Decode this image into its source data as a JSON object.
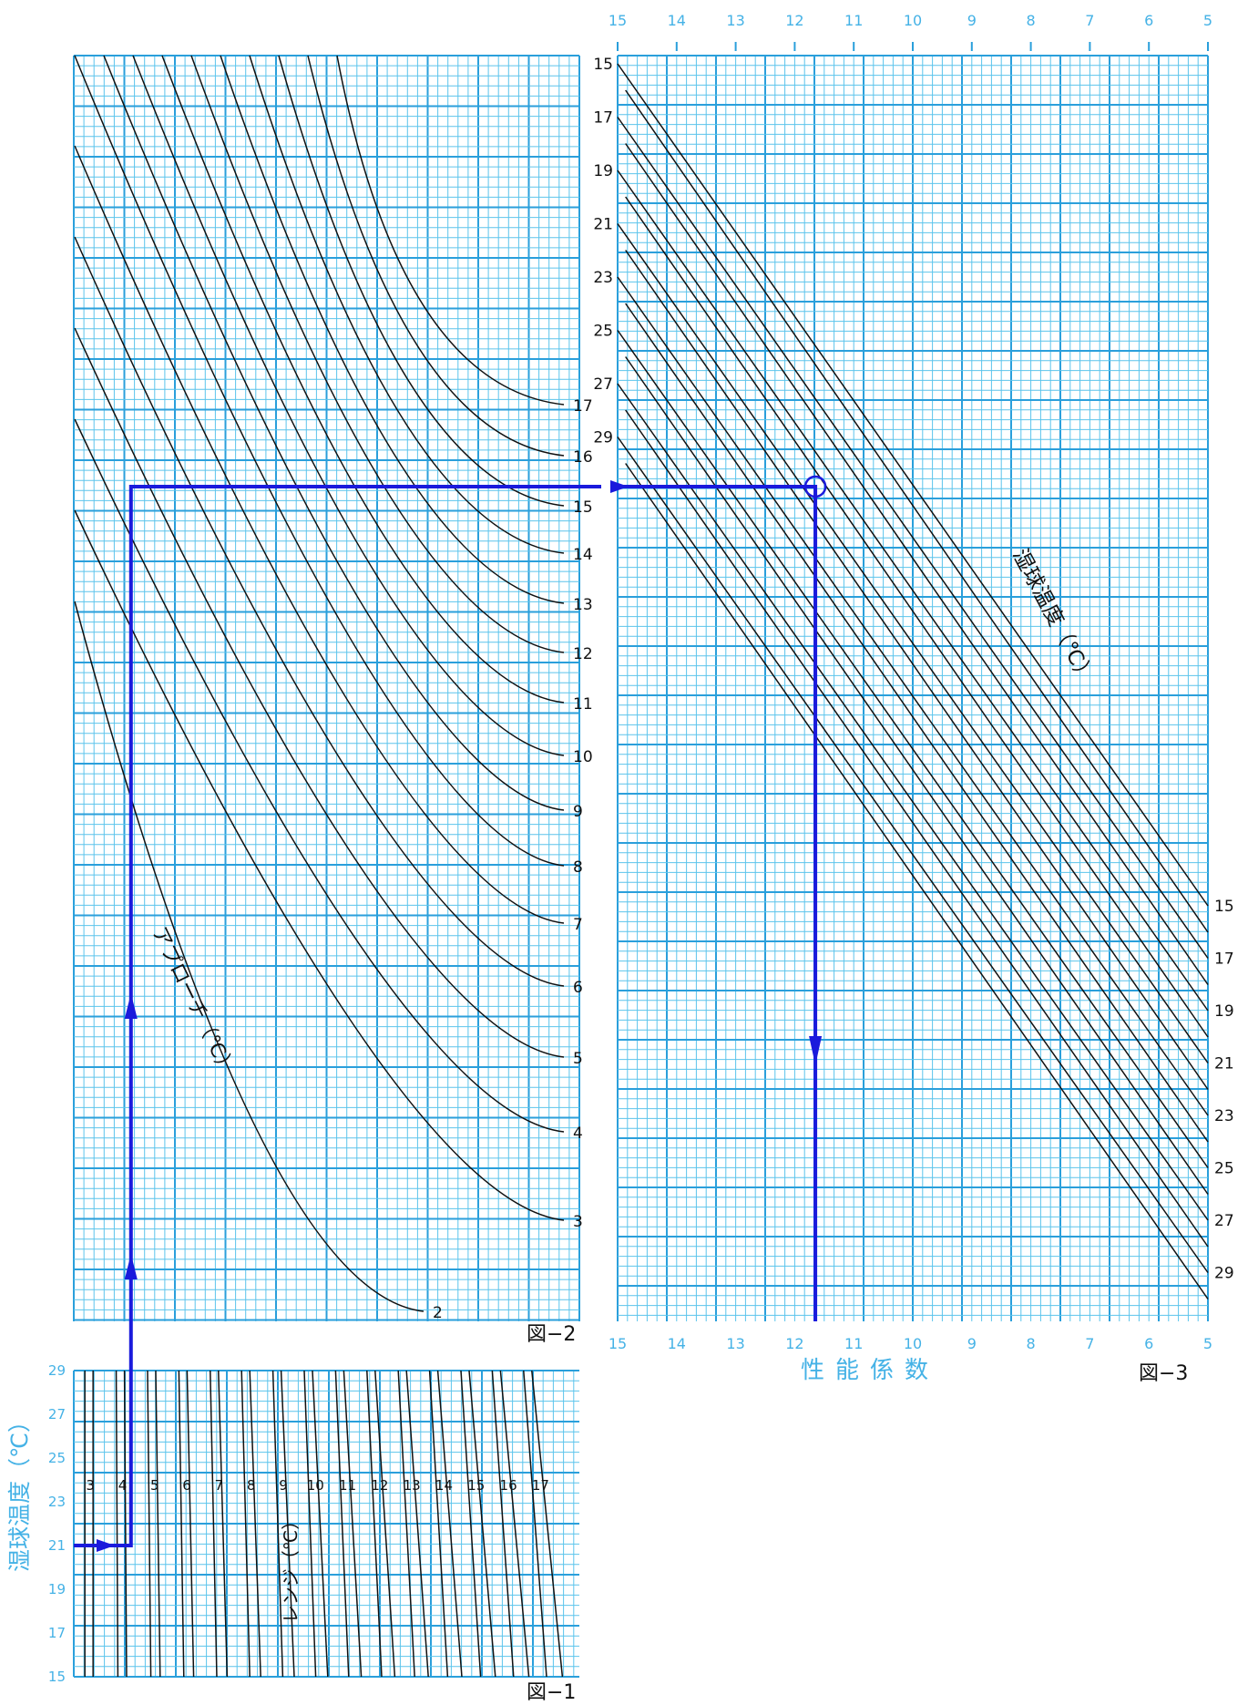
{
  "figure_labels": {
    "fig1": "図−1",
    "fig2": "図−2",
    "fig3": "図−3"
  },
  "colors": {
    "grid": "#5cc4ec",
    "grid_major": "#2a9fdb",
    "curve": "#111111",
    "path": "#1a1adc",
    "label": "#45b2e6"
  },
  "chart_data": [
    {
      "id": "fig1",
      "type": "line",
      "title": "図−1",
      "ylabel": "湿球温度（℃）",
      "curve_label": "レンジ（℃）",
      "y_ticks": [
        "15",
        "17",
        "19",
        "21",
        "23",
        "25",
        "27",
        "29"
      ],
      "ylim": [
        15,
        29
      ],
      "series": [
        {
          "name": "3",
          "values": [
            [
              0.6,
              15
            ],
            [
              0.6,
              29
            ]
          ]
        },
        {
          "name": "4",
          "values": [
            [
              1.6,
              15
            ],
            [
              1.6,
              29
            ]
          ]
        },
        {
          "name": "5",
          "values": [
            [
              2.6,
              15
            ],
            [
              2.6,
              29
            ]
          ]
        },
        {
          "name": "6",
          "values": [
            [
              3.6,
              15
            ],
            [
              3.6,
              29
            ]
          ]
        },
        {
          "name": "7",
          "values": [
            [
              4.6,
              15
            ],
            [
              4.6,
              29
            ]
          ]
        },
        {
          "name": "8",
          "values": [
            [
              5.6,
              15
            ],
            [
              5.6,
              29
            ]
          ]
        },
        {
          "name": "9",
          "values": [
            [
              6.6,
              15
            ],
            [
              6.6,
              29
            ]
          ]
        },
        {
          "name": "10",
          "values": [
            [
              7.6,
              15
            ],
            [
              7.6,
              29
            ]
          ]
        },
        {
          "name": "11",
          "values": [
            [
              8.6,
              15
            ],
            [
              8.6,
              29
            ]
          ]
        },
        {
          "name": "12",
          "values": [
            [
              9.6,
              15
            ],
            [
              9.6,
              29
            ]
          ]
        },
        {
          "name": "13",
          "values": [
            [
              10.6,
              15
            ],
            [
              10.6,
              29
            ]
          ]
        },
        {
          "name": "14",
          "values": [
            [
              11.6,
              15
            ],
            [
              11.6,
              29
            ]
          ]
        },
        {
          "name": "15",
          "values": [
            [
              12.6,
              15
            ],
            [
              12.6,
              29
            ]
          ]
        },
        {
          "name": "16",
          "values": [
            [
              13.6,
              15
            ],
            [
              13.6,
              29
            ]
          ]
        },
        {
          "name": "17",
          "values": [
            [
              14.6,
              15
            ],
            [
              14.6,
              29
            ]
          ]
        }
      ],
      "example_path": [
        [
          0,
          21
        ],
        [
          2.6,
          21
        ],
        [
          2.6,
          29
        ]
      ],
      "grid": true
    },
    {
      "id": "fig2",
      "type": "line",
      "title": "図−2",
      "curve_label": "アプローチ（℃）",
      "curve_names": [
        "2",
        "3",
        "4",
        "5",
        "6",
        "7",
        "8",
        "9",
        "10",
        "11",
        "12",
        "13",
        "14",
        "15",
        "16",
        "17"
      ],
      "example_path": "vertical at range 5 up to approach curve, then horizontal to 図−3",
      "grid": true
    },
    {
      "id": "fig3",
      "type": "line",
      "title": "図−3",
      "xlabel": "性能係数",
      "x_ticks": [
        "15",
        "14",
        "13",
        "12",
        "11",
        "10",
        "9",
        "8",
        "7",
        "6",
        "5"
      ],
      "xlim": [
        15,
        5
      ],
      "left_labels": [
        "15",
        "17",
        "19",
        "21",
        "23",
        "25",
        "27",
        "29"
      ],
      "right_labels": [
        "15",
        "17",
        "19",
        "21",
        "23",
        "25",
        "27",
        "29"
      ],
      "curve_label": "湿球温度（℃）",
      "example_result": 11.65,
      "grid": true
    }
  ]
}
